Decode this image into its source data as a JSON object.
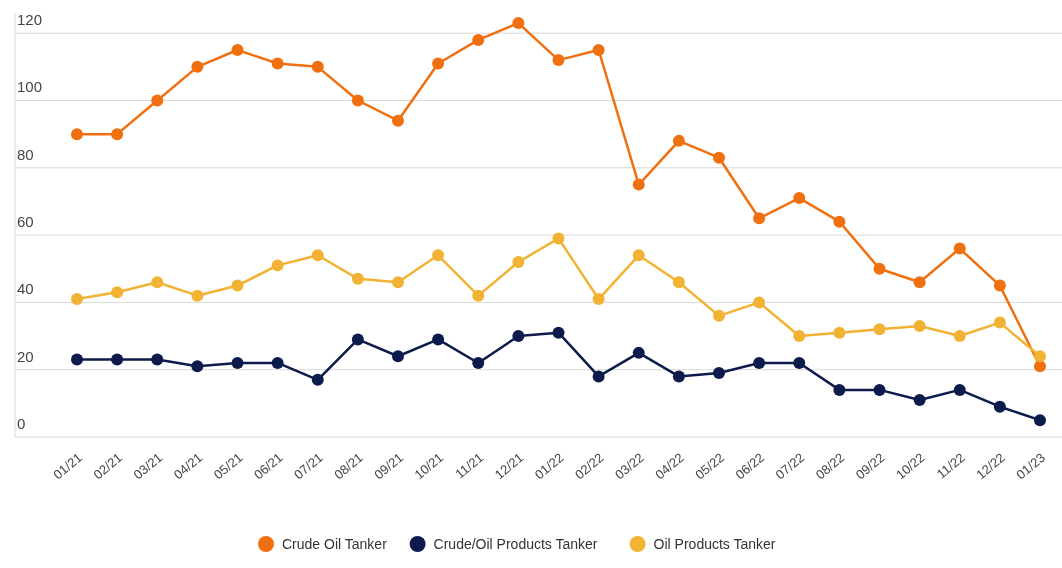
{
  "chart_data": {
    "type": "line",
    "categories": [
      "01/21",
      "02/21",
      "03/21",
      "04/21",
      "05/21",
      "06/21",
      "07/21",
      "08/21",
      "09/21",
      "10/21",
      "11/21",
      "12/21",
      "01/22",
      "02/22",
      "03/22",
      "04/22",
      "05/22",
      "06/22",
      "07/22",
      "08/22",
      "09/22",
      "10/22",
      "11/22",
      "12/22",
      "01/23"
    ],
    "series": [
      {
        "name": "Crude Oil Tanker",
        "color": "#f07010",
        "values": [
          90,
          90,
          100,
          110,
          115,
          111,
          110,
          100,
          94,
          111,
          118,
          123,
          112,
          115,
          75,
          88,
          83,
          65,
          71,
          64,
          50,
          46,
          56,
          45,
          21
        ]
      },
      {
        "name": "Crude/Oil Products Tanker",
        "color": "#0d1b4c",
        "values": [
          23,
          23,
          23,
          21,
          22,
          22,
          17,
          29,
          24,
          29,
          22,
          30,
          31,
          18,
          25,
          18,
          19,
          22,
          22,
          14,
          14,
          11,
          14,
          9,
          5
        ]
      },
      {
        "name": "Oil Products Tanker",
        "color": "#f2b233",
        "values": [
          41,
          43,
          46,
          42,
          45,
          51,
          54,
          47,
          46,
          54,
          42,
          52,
          59,
          41,
          54,
          46,
          36,
          40,
          30,
          31,
          32,
          33,
          30,
          34,
          24
        ]
      }
    ],
    "ylim": [
      0,
      126
    ],
    "yticks": [
      0,
      20,
      40,
      60,
      80,
      100,
      120
    ],
    "grid": "y",
    "legend": "bottom",
    "marker": "circle",
    "line_style": "solid"
  }
}
